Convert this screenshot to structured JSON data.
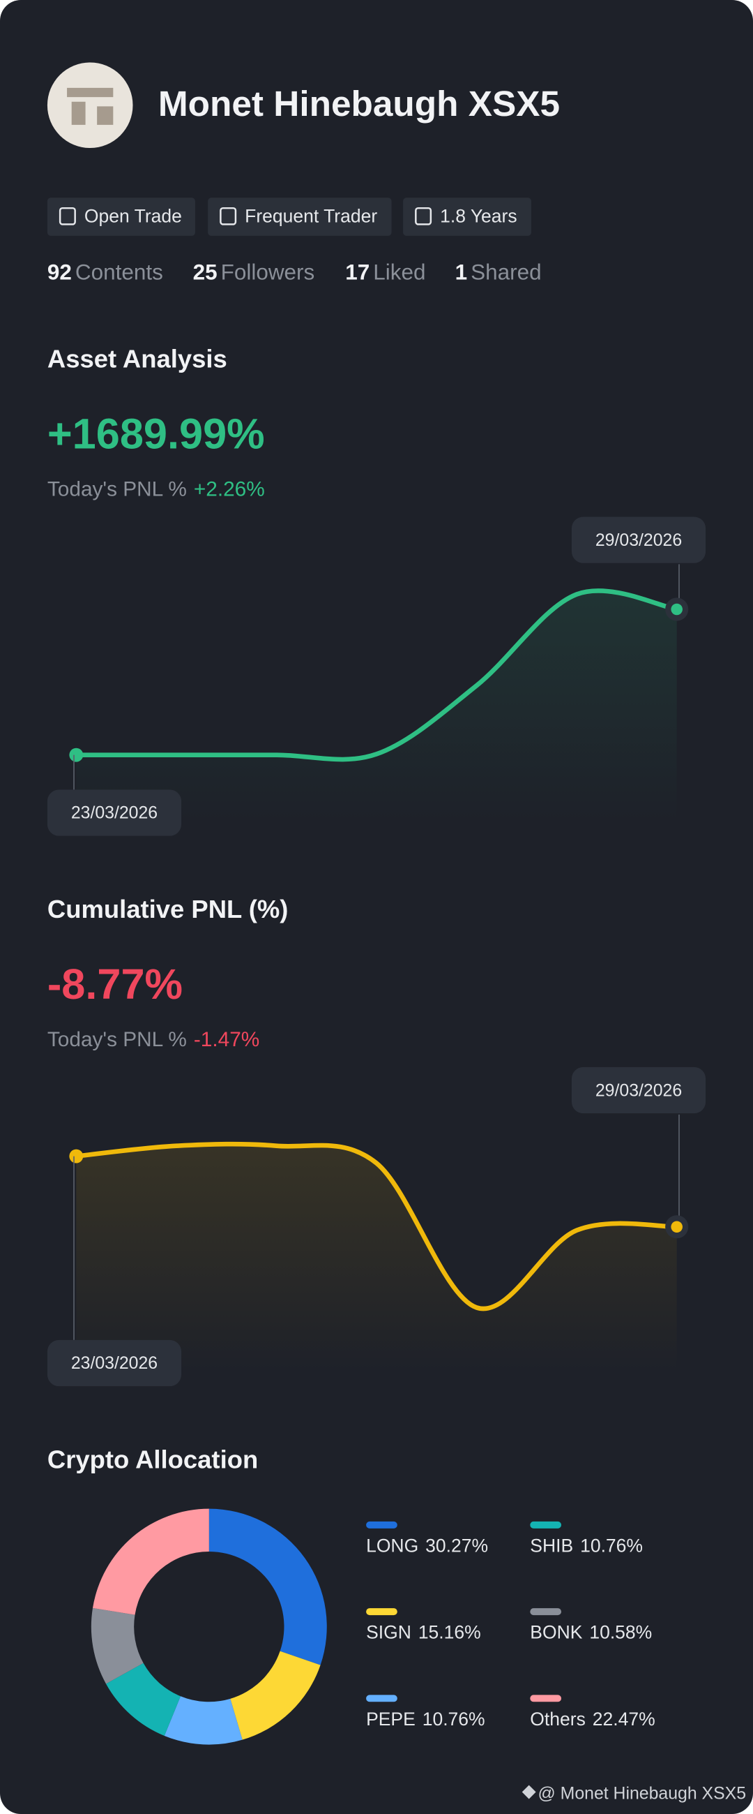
{
  "profile": {
    "name": "Monet Hinebaugh XSX5",
    "badges": [
      "Open Trade",
      "Frequent Trader",
      "1.8 Years"
    ],
    "stats": [
      {
        "value": 92,
        "label": "Contents"
      },
      {
        "value": 25,
        "label": "Followers"
      },
      {
        "value": 17,
        "label": "Liked"
      },
      {
        "value": 1,
        "label": "Shared"
      }
    ]
  },
  "chart_data": [
    {
      "type": "line",
      "title": "Asset Analysis",
      "headline": "+1689.99%",
      "subtitle": "Today's PNL %",
      "subtitle_value": "+2.26%",
      "x": [
        "23/03/2026",
        null,
        null,
        null,
        null,
        null,
        "29/03/2026"
      ],
      "series": [
        {
          "color": "#2fbf84",
          "values": [
            0,
            0,
            0,
            10,
            805,
            1864,
            1689.99
          ]
        }
      ],
      "ylim": [
        -765,
        2589
      ]
    },
    {
      "type": "line",
      "title": "Cumulative PNL (%)",
      "headline": "-8.77%",
      "subtitle": "Today's PNL %",
      "subtitle_value": "-1.47%",
      "x": [
        "23/03/2026",
        null,
        null,
        null,
        null,
        null,
        "29/03/2026"
      ],
      "series": [
        {
          "color": "#f0b90b",
          "values": [
            0,
            1.29,
            1.29,
            -0.86,
            -18.8,
            -9.2,
            -8.77
          ]
        }
      ],
      "ylim": [
        -26.7,
        9.2
      ]
    },
    {
      "type": "pie",
      "title": "Crypto Allocation",
      "categories": [
        "LONG",
        "SIGN",
        "PEPE",
        "SHIB",
        "BONK",
        "Others"
      ],
      "values": [
        30.27,
        15.16,
        10.76,
        10.76,
        10.58,
        22.47
      ],
      "value_labels": [
        "30.27%",
        "15.16%",
        "10.76%",
        "10.76%",
        "10.58%",
        "22.47%"
      ],
      "colors": [
        "#1f6fdc",
        "#fdd835",
        "#64b0ff",
        "#14b3b3",
        "#8a8f99",
        "#ff9aa2"
      ]
    }
  ],
  "footer": "@ Monet Hinebaugh XSX5"
}
